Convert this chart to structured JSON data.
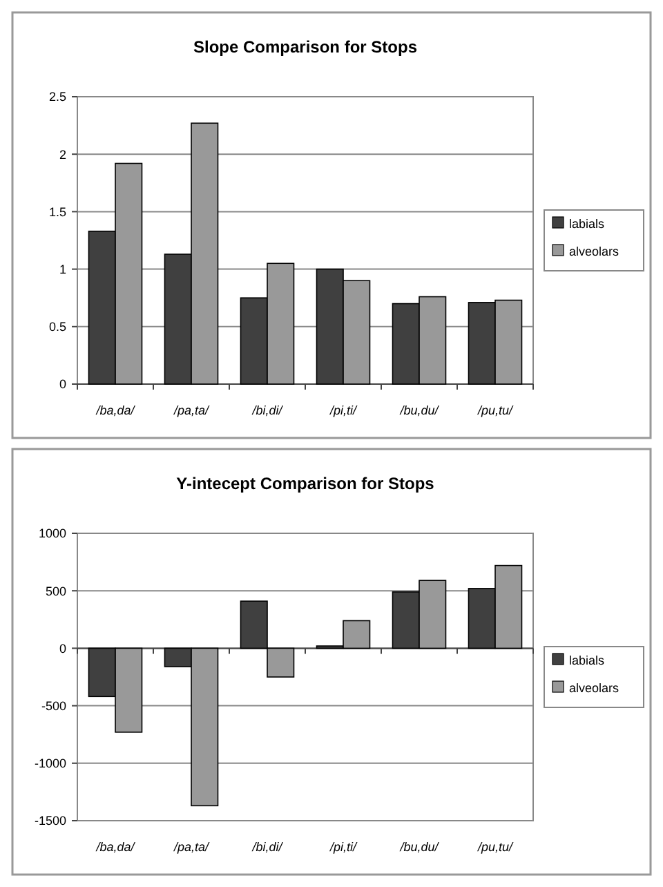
{
  "chart_data": [
    {
      "type": "bar",
      "title": "Slope Comparison for Stops",
      "categories": [
        "/ba,da/",
        "/pa,ta/",
        "/bi,di/",
        "/pi,ti/",
        "/bu,du/",
        "/pu,tu/"
      ],
      "series": [
        {
          "name": "labials",
          "color": "#404040",
          "values": [
            1.33,
            1.13,
            0.75,
            1.0,
            0.7,
            0.71
          ]
        },
        {
          "name": "alveolars",
          "color": "#999999",
          "values": [
            1.92,
            2.27,
            1.05,
            0.9,
            0.76,
            0.73
          ]
        }
      ],
      "ylim": [
        0,
        2.5
      ],
      "yticks": [
        0,
        0.5,
        1,
        1.5,
        2,
        2.5
      ],
      "grid": "y",
      "legend": "right"
    },
    {
      "type": "bar",
      "title": "Y-intecept Comparison for Stops",
      "categories": [
        "/ba,da/",
        "/pa,ta/",
        "/bi,di/",
        "/pi,ti/",
        "/bu,du/",
        "/pu,tu/"
      ],
      "series": [
        {
          "name": "labials",
          "color": "#404040",
          "values": [
            -420,
            -160,
            410,
            20,
            490,
            520
          ]
        },
        {
          "name": "alveolars",
          "color": "#999999",
          "values": [
            -730,
            -1370,
            -250,
            240,
            590,
            720
          ]
        }
      ],
      "ylim": [
        -1500,
        1000
      ],
      "yticks": [
        -1500,
        -1000,
        -500,
        0,
        500,
        1000
      ],
      "grid": "y",
      "legend": "right"
    }
  ]
}
